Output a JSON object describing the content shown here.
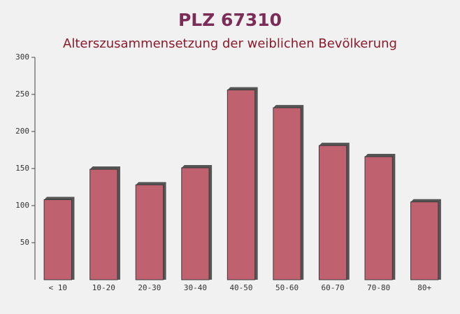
{
  "chart_data": {
    "type": "bar",
    "title": "PLZ 67310",
    "subtitle": "Alterszusammensetzung der weiblichen Bevölkerung",
    "categories": [
      "< 10",
      "10-20",
      "20-30",
      "30-40",
      "40-50",
      "50-60",
      "60-70",
      "70-80",
      "80+"
    ],
    "values": [
      108,
      149,
      128,
      151,
      256,
      232,
      181,
      166,
      105
    ],
    "color": "#c0616f",
    "ylim": [
      0,
      300
    ],
    "yticks": [
      50,
      100,
      150,
      200,
      250,
      300
    ],
    "grid": false
  }
}
